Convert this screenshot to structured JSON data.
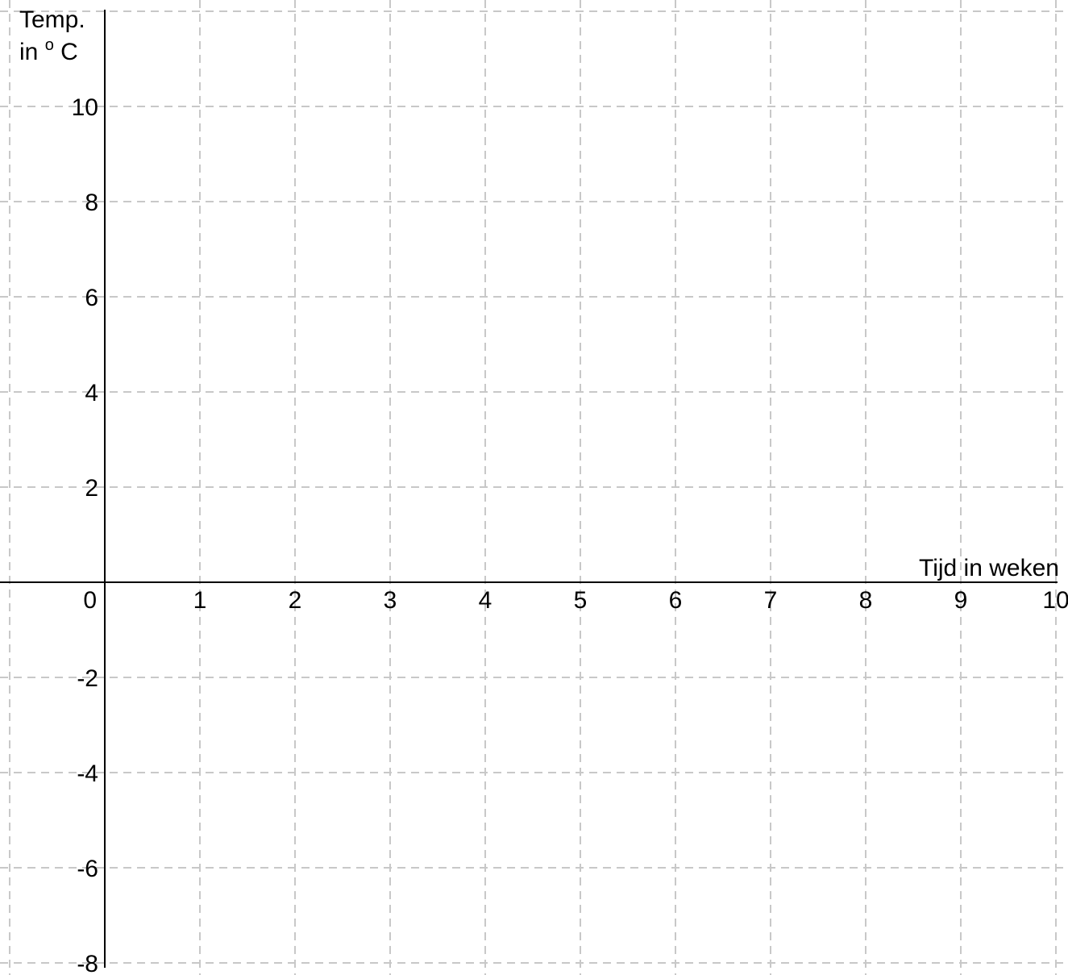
{
  "chart_data": {
    "type": "line",
    "title": "",
    "xlabel": "Tijd in weken",
    "ylabel_line1": "Temp.",
    "ylabel_line2_prefix": "in ",
    "ylabel_degree": "o",
    "ylabel_unit": "C",
    "xlim": [
      -1,
      10
    ],
    "ylim": [
      -8,
      12
    ],
    "x_ticks": [
      1,
      2,
      3,
      4,
      5,
      6,
      7,
      8,
      9,
      10
    ],
    "x_tick_labels": [
      "1",
      "2",
      "3",
      "4",
      "5",
      "6",
      "7",
      "8",
      "9",
      "10"
    ],
    "y_ticks": [
      10,
      8,
      6,
      4,
      2,
      0,
      -2,
      -4,
      -6,
      -8
    ],
    "y_tick_labels": [
      "10",
      "8",
      "6",
      "4",
      "2",
      "0",
      "-2",
      "-4",
      "-6",
      "-8"
    ],
    "x_grid_step": 1,
    "y_grid_step": 2,
    "grid": true,
    "grid_style": "dashed",
    "grid_color": "#c8c8c8",
    "axis_color": "#000000",
    "series": []
  }
}
